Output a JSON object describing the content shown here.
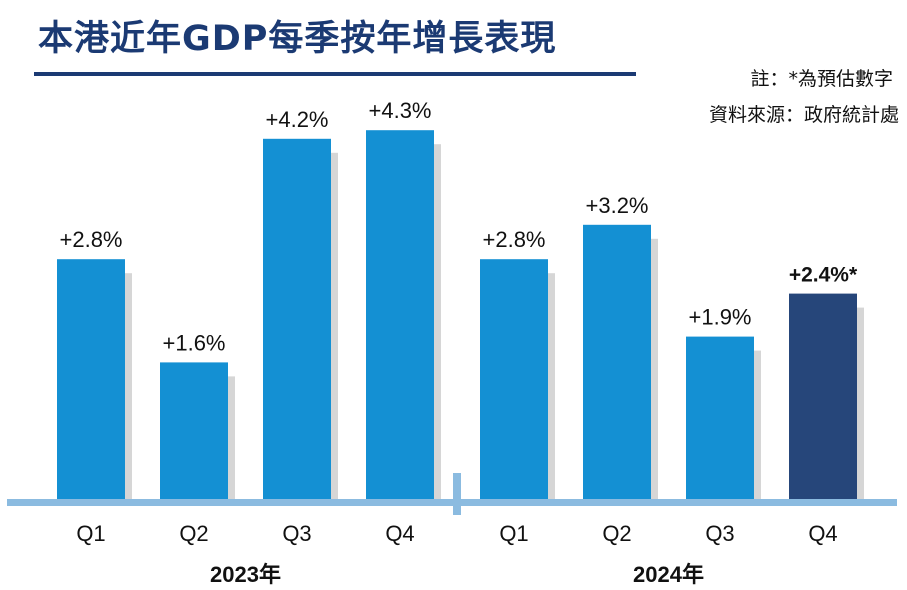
{
  "header": {
    "title": "本港近年GDP每季按年增長表現",
    "note": "註：*為預估數字",
    "source": "資料來源：政府統計處"
  },
  "colors": {
    "bar": "#1490d3",
    "estimate_bar": "#26467a",
    "shadow": "#d6d6d6",
    "axis": "#8bbbe0",
    "title": "#1b3a73"
  },
  "chart_data": {
    "type": "bar",
    "categories": [
      "Q1",
      "Q2",
      "Q3",
      "Q4",
      "Q1",
      "Q2",
      "Q3",
      "Q4"
    ],
    "groups": [
      {
        "label": "2023年",
        "categories": [
          "Q1",
          "Q2",
          "Q3",
          "Q4"
        ]
      },
      {
        "label": "2024年",
        "categories": [
          "Q1",
          "Q2",
          "Q3",
          "Q4"
        ]
      }
    ],
    "values": [
      2.8,
      1.6,
      4.2,
      4.3,
      2.8,
      3.2,
      1.9,
      2.4
    ],
    "data_labels": [
      "+2.8%",
      "+1.6%",
      "+4.2%",
      "+4.3%",
      "+2.8%",
      "+3.2%",
      "+1.9%",
      "+2.4%*"
    ],
    "estimated": [
      false,
      false,
      false,
      false,
      false,
      false,
      false,
      true
    ],
    "title": "本港近年GDP每季按年增長表現",
    "xlabel": "",
    "ylabel": "",
    "ylim": [
      0,
      4.6
    ],
    "grid": false,
    "legend": "none"
  }
}
